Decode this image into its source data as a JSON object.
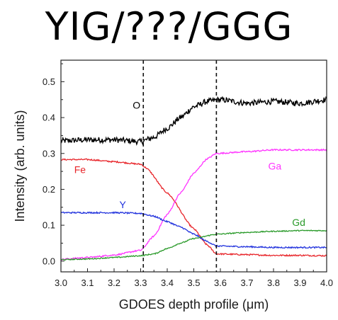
{
  "title": "YIG/???/GGG",
  "chart_data": {
    "type": "line",
    "title": "YIG/???/GGG",
    "xlabel": "GDOES depth profile (μm)",
    "ylabel": "Intensity (arb. units)",
    "xlim": [
      3.0,
      4.0
    ],
    "ylim": [
      -0.03,
      0.56
    ],
    "xticks": [
      "3.0",
      "3.1",
      "3.2",
      "3.3",
      "3.4",
      "3.5",
      "3.6",
      "3.7",
      "3.8",
      "3.9",
      "4.0"
    ],
    "yticks": [
      "0.0",
      "0.1",
      "0.2",
      "0.3",
      "0.4",
      "0.5"
    ],
    "reference_lines": [
      3.31,
      3.585
    ],
    "grid": false,
    "series": [
      {
        "name": "O",
        "color": "#000000",
        "label_at": [
          3.27,
          0.425
        ],
        "points": [
          [
            3.0,
            0.335
          ],
          [
            3.1,
            0.338
          ],
          [
            3.2,
            0.338
          ],
          [
            3.3,
            0.333
          ],
          [
            3.35,
            0.345
          ],
          [
            3.4,
            0.37
          ],
          [
            3.45,
            0.4
          ],
          [
            3.5,
            0.43
          ],
          [
            3.55,
            0.445
          ],
          [
            3.6,
            0.45
          ],
          [
            3.7,
            0.44
          ],
          [
            3.8,
            0.445
          ],
          [
            3.9,
            0.44
          ],
          [
            4.0,
            0.45
          ]
        ],
        "noise": 0.008
      },
      {
        "name": "Fe",
        "color": "#e8262b",
        "label_at": [
          3.05,
          0.245
        ],
        "points": [
          [
            3.0,
            0.283
          ],
          [
            3.1,
            0.283
          ],
          [
            3.2,
            0.277
          ],
          [
            3.3,
            0.27
          ],
          [
            3.32,
            0.26
          ],
          [
            3.4,
            0.19
          ],
          [
            3.5,
            0.09
          ],
          [
            3.55,
            0.045
          ],
          [
            3.585,
            0.02
          ],
          [
            3.7,
            0.018
          ],
          [
            3.8,
            0.016
          ],
          [
            3.9,
            0.016
          ],
          [
            4.0,
            0.015
          ]
        ],
        "noise": 0.002
      },
      {
        "name": "Ga",
        "color": "#ff33ff",
        "label_at": [
          3.78,
          0.255
        ],
        "points": [
          [
            3.0,
            0.005
          ],
          [
            3.1,
            0.01
          ],
          [
            3.2,
            0.017
          ],
          [
            3.3,
            0.03
          ],
          [
            3.35,
            0.07
          ],
          [
            3.4,
            0.13
          ],
          [
            3.45,
            0.19
          ],
          [
            3.5,
            0.245
          ],
          [
            3.55,
            0.285
          ],
          [
            3.585,
            0.3
          ],
          [
            3.7,
            0.305
          ],
          [
            3.8,
            0.31
          ],
          [
            3.9,
            0.31
          ],
          [
            4.0,
            0.31
          ]
        ],
        "noise": 0.002
      },
      {
        "name": "Y",
        "color": "#2233dd",
        "label_at": [
          3.22,
          0.148
        ],
        "points": [
          [
            3.0,
            0.135
          ],
          [
            3.1,
            0.135
          ],
          [
            3.2,
            0.135
          ],
          [
            3.3,
            0.133
          ],
          [
            3.35,
            0.125
          ],
          [
            3.4,
            0.11
          ],
          [
            3.45,
            0.095
          ],
          [
            3.5,
            0.075
          ],
          [
            3.55,
            0.055
          ],
          [
            3.585,
            0.042
          ],
          [
            3.7,
            0.04
          ],
          [
            3.8,
            0.038
          ],
          [
            3.9,
            0.038
          ],
          [
            4.0,
            0.038
          ]
        ],
        "noise": 0.002
      },
      {
        "name": "Gd",
        "color": "#2a9a2a",
        "label_at": [
          3.87,
          0.098
        ],
        "points": [
          [
            3.0,
            0.004
          ],
          [
            3.1,
            0.006
          ],
          [
            3.2,
            0.01
          ],
          [
            3.3,
            0.015
          ],
          [
            3.35,
            0.02
          ],
          [
            3.4,
            0.035
          ],
          [
            3.45,
            0.05
          ],
          [
            3.5,
            0.063
          ],
          [
            3.585,
            0.075
          ],
          [
            3.7,
            0.08
          ],
          [
            3.8,
            0.083
          ],
          [
            3.9,
            0.085
          ],
          [
            4.0,
            0.085
          ]
        ],
        "noise": 0.0015
      }
    ]
  }
}
